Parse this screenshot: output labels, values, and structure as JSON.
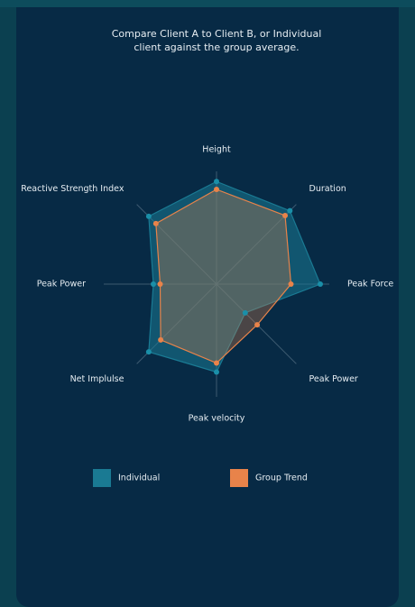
{
  "subtitle": "Compare Client A to Client B, or Individual client against the group average.",
  "chart_data": {
    "type": "radar",
    "categories": [
      "Height",
      "Duration",
      "Peak Force",
      "Peak Power",
      "Peak velocity",
      "Net Implulse",
      "Peak Power",
      "Reactive Strength Index"
    ],
    "rlim": [
      0,
      100
    ],
    "series": [
      {
        "name": "Individual",
        "color": "#1a7a93",
        "values": [
          91,
          92,
          92,
          36,
          78,
          85,
          56,
          85
        ]
      },
      {
        "name": "Group Trend",
        "color": "#e8834a",
        "values": [
          84,
          86,
          66,
          51,
          70,
          70,
          50,
          76
        ]
      }
    ]
  }
}
